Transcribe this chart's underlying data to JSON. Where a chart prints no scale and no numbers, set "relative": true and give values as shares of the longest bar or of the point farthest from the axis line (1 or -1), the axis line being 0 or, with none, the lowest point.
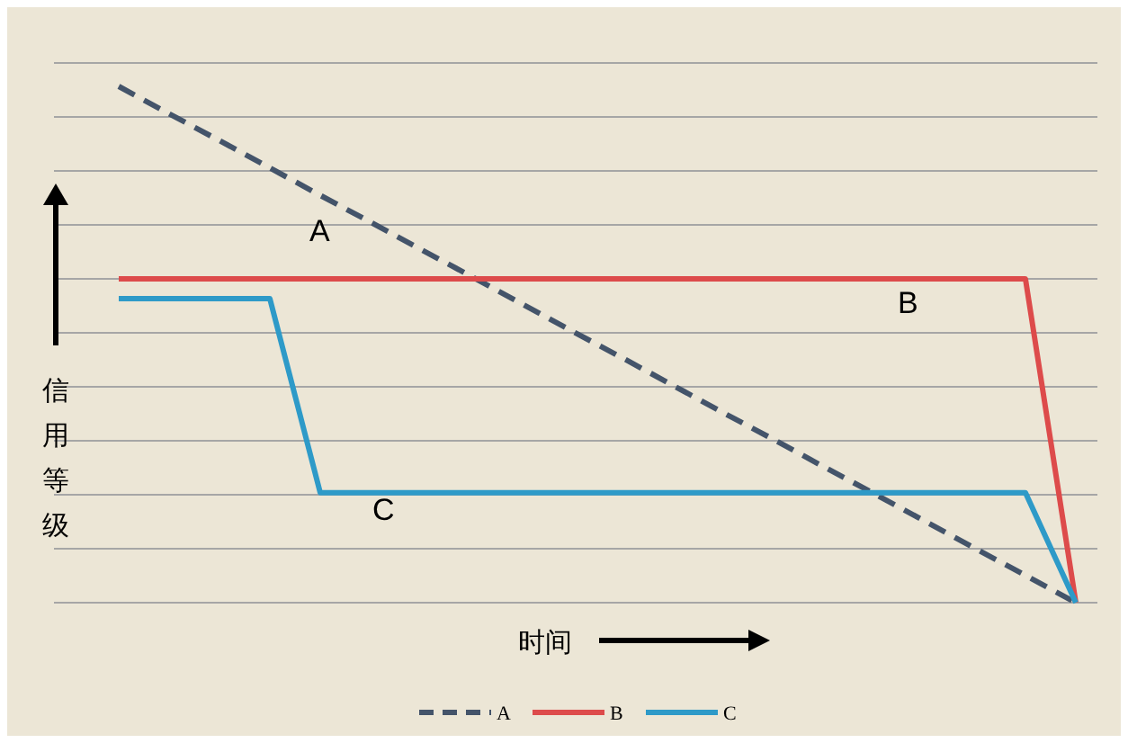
{
  "chart_data": {
    "type": "line",
    "relative": true,
    "xlabel": "时间",
    "ylabel": "信用等级",
    "grid": "y",
    "legend": "bottom",
    "marker": "none",
    "categories": [
      null,
      null,
      null,
      null,
      null,
      null,
      null,
      null,
      null,
      null,
      null,
      null,
      null,
      null,
      null,
      null,
      null,
      null,
      null,
      null
    ],
    "series": [
      {
        "name": "A",
        "color": "#44546a",
        "line_style": "dashed",
        "values": [
          1,
          0.947,
          0.895,
          0.842,
          0.789,
          0.737,
          0.684,
          0.632,
          0.579,
          0.526,
          0.474,
          0.421,
          0.368,
          0.316,
          0.263,
          0.211,
          0.158,
          0.105,
          0.053,
          0
        ]
      },
      {
        "name": "B",
        "color": "#dd4b4b",
        "line_style": "solid",
        "values": [
          0.627,
          0.627,
          0.627,
          0.627,
          0.627,
          0.627,
          0.627,
          0.627,
          0.627,
          0.627,
          0.627,
          0.627,
          0.627,
          0.627,
          0.627,
          0.627,
          0.627,
          0.627,
          0.627,
          0
        ]
      },
      {
        "name": "C",
        "color": "#2e9ac8",
        "line_style": "solid",
        "values": [
          0.589,
          0.589,
          0.589,
          0.589,
          0.213,
          0.213,
          0.213,
          0.213,
          0.213,
          0.213,
          0.213,
          0.213,
          0.213,
          0.213,
          0.213,
          0.213,
          0.213,
          0.213,
          0.213,
          0
        ]
      }
    ],
    "annotations": [
      "A",
      "B",
      "C"
    ]
  }
}
